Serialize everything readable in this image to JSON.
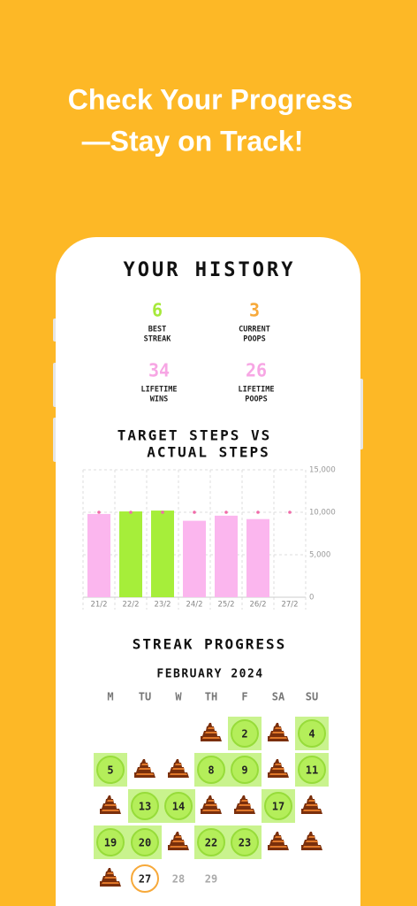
{
  "headline": [
    "Check Your Progress",
    "—Stay on Track!"
  ],
  "history_title": "YOUR HISTORY",
  "stats": [
    {
      "value": "6",
      "label": [
        "BEST",
        "STREAK"
      ],
      "color": "#a6e93a"
    },
    {
      "value": "3",
      "label": [
        "CURRENT",
        "POOPS"
      ],
      "color": "#f7a93a"
    },
    {
      "value": "34",
      "label": [
        "LIFETIME",
        "WINS"
      ],
      "color": "#f7a6e4"
    },
    {
      "value": "26",
      "label": [
        "LIFETIME",
        "POOPS"
      ],
      "color": "#f7a6e4"
    }
  ],
  "chart_data": {
    "type": "bar",
    "title": [
      "TARGET STEPS VS",
      "ACTUAL STEPS"
    ],
    "categories": [
      "21/2",
      "22/2",
      "23/2",
      "24/2",
      "25/2",
      "26/2",
      "27/2"
    ],
    "values": [
      9800,
      10100,
      10200,
      9000,
      9600,
      9200,
      null
    ],
    "colors": [
      "#fbb6ee",
      "#a6ee3a",
      "#a6ee3a",
      "#fbb6ee",
      "#fbb6ee",
      "#fbb6ee",
      "#fbb6ee"
    ],
    "targets": [
      10000,
      10000,
      10000,
      10000,
      10000,
      10000,
      10000
    ],
    "target_color": "#f06aa8",
    "ylim": [
      0,
      15000
    ],
    "yticks": [
      0,
      {
        "value": 5000,
        "label": "5,000"
      },
      {
        "value": 10000,
        "label": "10,000"
      },
      {
        "value": 15000,
        "label": "15,000"
      }
    ],
    "grid": true
  },
  "calendar": {
    "title": "STREAK PROGRESS",
    "month": "FEBRUARY 2024",
    "weekdays": [
      "M",
      "TU",
      "W",
      "TH",
      "F",
      "SA",
      "SU"
    ],
    "rows": [
      [
        null,
        null,
        null,
        {
          "status": "poop"
        },
        {
          "label": "2",
          "status": "win"
        },
        {
          "status": "poop"
        },
        {
          "label": "4",
          "status": "win"
        }
      ],
      [
        {
          "label": "5",
          "status": "win"
        },
        {
          "status": "poop"
        },
        {
          "status": "poop"
        },
        {
          "label": "8",
          "status": "win"
        },
        {
          "label": "9",
          "status": "win"
        },
        {
          "status": "poop"
        },
        {
          "label": "11",
          "status": "win"
        }
      ],
      [
        {
          "status": "poop"
        },
        {
          "label": "13",
          "status": "win"
        },
        {
          "label": "14",
          "status": "win"
        },
        {
          "status": "poop"
        },
        {
          "status": "poop"
        },
        {
          "label": "17",
          "status": "win"
        },
        {
          "status": "poop"
        }
      ],
      [
        {
          "label": "19",
          "status": "win"
        },
        {
          "label": "20",
          "status": "win"
        },
        {
          "status": "poop"
        },
        {
          "label": "22",
          "status": "win"
        },
        {
          "label": "23",
          "status": "win"
        },
        {
          "status": "poop"
        },
        {
          "status": "poop"
        }
      ],
      [
        {
          "status": "poop"
        },
        {
          "label": "27",
          "status": "today"
        },
        {
          "label": "28",
          "status": "future"
        },
        {
          "label": "29",
          "status": "future"
        },
        null,
        null,
        null
      ]
    ]
  }
}
